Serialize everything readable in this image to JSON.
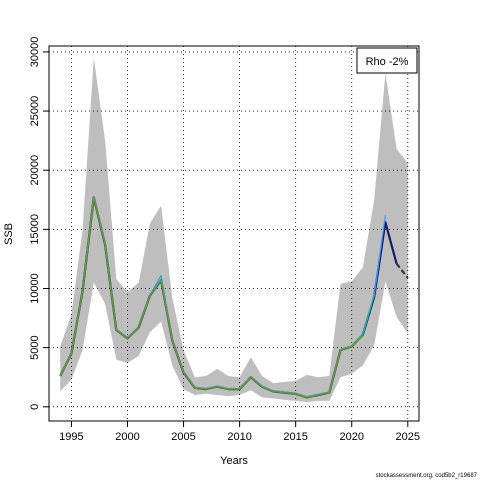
{
  "chart_data": {
    "type": "line",
    "xlabel": "Years",
    "ylabel": "SSB",
    "xlim": [
      1993,
      2026
    ],
    "ylim": [
      -1200,
      30500
    ],
    "x_ticks": [
      1995,
      2000,
      2005,
      2010,
      2015,
      2020,
      2025
    ],
    "y_ticks": [
      0,
      5000,
      10000,
      15000,
      20000,
      25000,
      30000
    ],
    "grid": true,
    "legend": {
      "text": "Rho -2%",
      "position": "top-right"
    },
    "source_text": "stockassessment.org, cod5b2_r19687",
    "colors": {
      "band": "#bebebe",
      "base": "#1a1a66",
      "retro_blue": "#3399ff",
      "retro_teal": "#22b3a0",
      "retro_green": "#669933",
      "projection": "#333333"
    },
    "confidence_band": {
      "x": [
        1994,
        1995,
        1996,
        1997,
        1998,
        1999,
        2000,
        2001,
        2002,
        2003,
        2004,
        2005,
        2006,
        2007,
        2008,
        2009,
        2010,
        2011,
        2012,
        2013,
        2014,
        2015,
        2016,
        2017,
        2018,
        2019,
        2020,
        2021,
        2022,
        2023,
        2024,
        2025
      ],
      "upper": [
        5100,
        7800,
        15000,
        29500,
        22500,
        10800,
        9700,
        10500,
        15500,
        17000,
        9200,
        4800,
        2500,
        2600,
        3200,
        2600,
        2500,
        4200,
        2600,
        2000,
        2100,
        2200,
        2700,
        2500,
        2600,
        10400,
        10600,
        11800,
        17500,
        28200,
        21800,
        20600
      ],
      "lower": [
        1300,
        2300,
        4800,
        10500,
        8700,
        4000,
        3700,
        4300,
        6300,
        7200,
        3500,
        1500,
        1000,
        1100,
        1000,
        900,
        1000,
        1400,
        800,
        700,
        600,
        500,
        400,
        500,
        500,
        2500,
        2800,
        3500,
        5200,
        10600,
        7600,
        6200
      ]
    },
    "series": [
      {
        "x": [
          1994,
          1995,
          1996,
          1997,
          1998,
          1999,
          2000,
          2001,
          2002,
          2003,
          2004,
          2005,
          2006,
          2007,
          2008,
          2009,
          2010,
          2011,
          2012,
          2013,
          2014,
          2015,
          2016,
          2017,
          2018,
          2019,
          2020,
          2021,
          2022,
          2023,
          2024
        ],
        "values": [
          2600,
          4500,
          9800,
          17700,
          13700,
          6500,
          5800,
          6700,
          9400,
          10700,
          5600,
          2900,
          1600,
          1500,
          1700,
          1500,
          1500,
          2500,
          1700,
          1300,
          1200,
          1100,
          800,
          1000,
          1200,
          4800,
          5100,
          6100,
          9300,
          15600,
          12100
        ],
        "color": "base",
        "width": 2.2
      },
      {
        "x": [
          1994,
          1995,
          1996,
          1997,
          1998,
          1999,
          2000,
          2001,
          2002,
          2003,
          2004,
          2005,
          2006,
          2007,
          2008,
          2009,
          2010,
          2011,
          2012,
          2013,
          2014,
          2015,
          2016,
          2017,
          2018,
          2019,
          2020,
          2021,
          2022,
          2023
        ],
        "values": [
          2650,
          4550,
          9850,
          17800,
          13800,
          6550,
          5850,
          6750,
          9450,
          11100,
          5650,
          2950,
          1650,
          1550,
          1750,
          1550,
          1550,
          2550,
          1750,
          1350,
          1250,
          1150,
          850,
          1050,
          1250,
          4850,
          5150,
          6150,
          9400,
          16200
        ],
        "color": "retro_blue",
        "width": 1.2
      },
      {
        "x": [
          1994,
          1995,
          1996,
          1997,
          1998,
          1999,
          2000,
          2001,
          2002,
          2003,
          2004,
          2005,
          2006,
          2007,
          2008,
          2009,
          2010,
          2011,
          2012,
          2013,
          2014,
          2015,
          2016,
          2017,
          2018,
          2019,
          2020,
          2021,
          2022
        ],
        "values": [
          2620,
          4520,
          9820,
          17750,
          13750,
          6520,
          5820,
          6720,
          9420,
          10800,
          5620,
          2920,
          1620,
          1520,
          1720,
          1520,
          1520,
          2520,
          1720,
          1320,
          1220,
          1120,
          820,
          1020,
          1220,
          4820,
          5120,
          6100,
          9500
        ],
        "color": "retro_teal",
        "width": 1.4
      },
      {
        "x": [
          1994,
          1995,
          1996,
          1997,
          1998,
          1999,
          2000,
          2001,
          2002,
          2003,
          2004,
          2005,
          2006,
          2007,
          2008,
          2009,
          2010,
          2011,
          2012,
          2013,
          2014,
          2015,
          2016,
          2017,
          2018,
          2019,
          2020,
          2021
        ],
        "values": [
          2600,
          4500,
          9800,
          17700,
          13700,
          6500,
          5800,
          6700,
          9400,
          10700,
          5600,
          2900,
          1600,
          1500,
          1700,
          1500,
          1500,
          2500,
          1700,
          1300,
          1200,
          1100,
          800,
          1000,
          1200,
          4800,
          5100,
          6000
        ],
        "color": "retro_green",
        "width": 1.6
      }
    ],
    "projection": {
      "x": [
        2024,
        2025
      ],
      "values": [
        12100,
        10900
      ],
      "color": "projection"
    }
  }
}
